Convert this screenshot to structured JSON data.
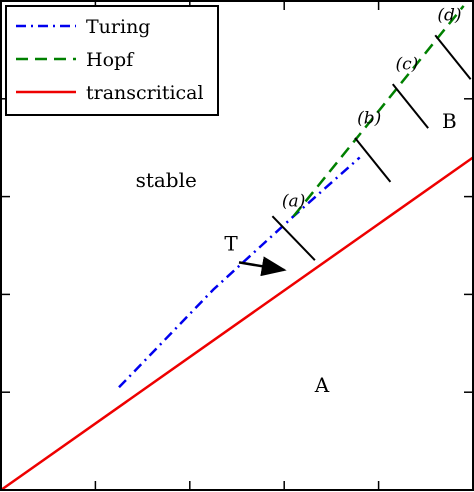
{
  "chart_data": {
    "type": "line",
    "x": [
      0,
      1,
      2,
      3,
      4,
      5,
      6,
      7,
      8,
      9,
      10
    ],
    "series": [
      {
        "name": "Turing",
        "color": "#0000ee",
        "style": "dash-dot",
        "points": [
          [
            2.5,
            2.1
          ],
          [
            4.5,
            4.1
          ],
          [
            6.2,
            5.6
          ],
          [
            7.6,
            6.8
          ]
        ]
      },
      {
        "name": "Hopf",
        "color": "#008000",
        "style": "dashed",
        "points": [
          [
            6.2,
            5.6
          ],
          [
            9.8,
            9.9
          ]
        ]
      },
      {
        "name": "transcritical",
        "color": "#ee0000",
        "style": "solid",
        "points": [
          [
            0.0,
            0.0
          ],
          [
            10.0,
            6.8
          ]
        ]
      }
    ],
    "region_labels": [
      {
        "text": "stable",
        "x": 3.5,
        "y": 6.2
      },
      {
        "text": "A",
        "x": 6.8,
        "y": 2.0
      },
      {
        "text": "B",
        "x": 9.5,
        "y": 7.4
      }
    ],
    "annotations": [
      {
        "text": "T",
        "x": 5.0,
        "y": 4.9,
        "arrow_to": [
          6.0,
          4.5
        ]
      }
    ],
    "panel_markers": [
      {
        "label": "(a)",
        "x0": 5.75,
        "y0": 5.6,
        "x1": 6.65,
        "y1": 4.7,
        "label_x": 6.2,
        "label_y": 5.8
      },
      {
        "label": "(b)",
        "x0": 7.5,
        "y0": 7.2,
        "x1": 8.25,
        "y1": 6.3,
        "label_x": 7.8,
        "label_y": 7.5
      },
      {
        "label": "(c)",
        "x0": 8.3,
        "y0": 8.3,
        "x1": 9.05,
        "y1": 7.4,
        "label_x": 8.6,
        "label_y": 8.6
      },
      {
        "label": "(d)",
        "x0": 9.2,
        "y0": 9.3,
        "x1": 9.95,
        "y1": 8.4,
        "label_x": 9.5,
        "label_y": 9.6
      }
    ],
    "xlim": [
      0,
      10
    ],
    "ylim": [
      0,
      10
    ],
    "xticks": [
      2,
      4,
      6,
      8
    ],
    "yticks": [
      2,
      4,
      6,
      8
    ],
    "title": "",
    "xlabel": "",
    "ylabel": "",
    "grid": false,
    "legend_position": "top-left"
  }
}
